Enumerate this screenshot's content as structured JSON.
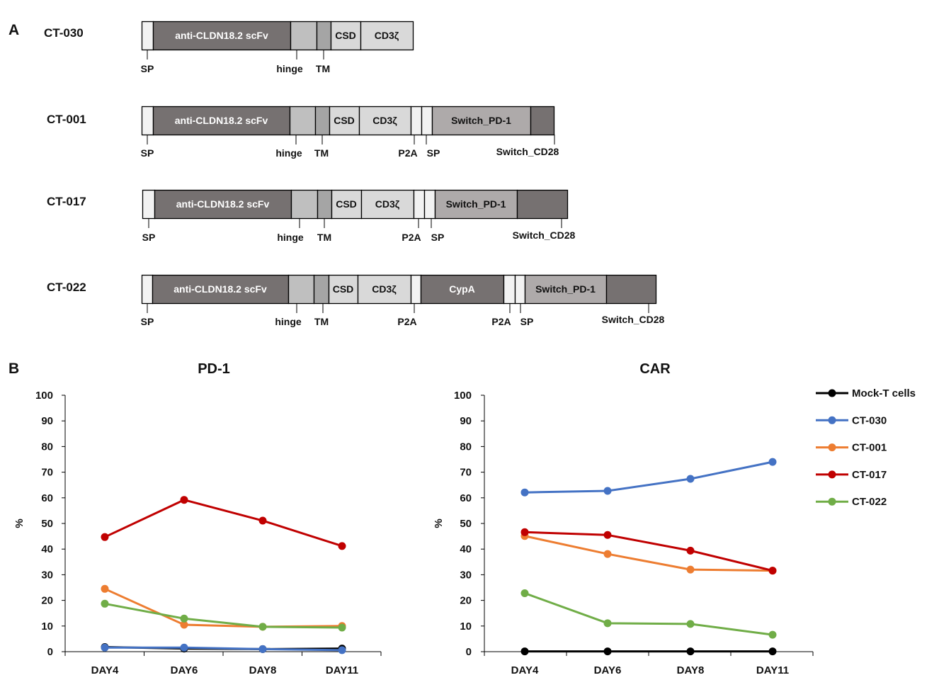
{
  "panels": {
    "a": "A",
    "b": "B"
  },
  "colors": {
    "sp": "#f2f2f2",
    "scfv": "#767171",
    "hinge": "#bfbfbf",
    "tm": "#a5a5a5",
    "csd": "#d9d9d9",
    "cd3z": "#d9d9d9",
    "p2a": "#f2f2f2",
    "switch_pd1": "#aeaaaa",
    "switch_cd28": "#767171",
    "cypa": "#767171",
    "mock": "#000000",
    "ct030": "#4472c4",
    "ct001": "#ed7d31",
    "ct017": "#c00000",
    "ct022": "#70ad47"
  },
  "constructs": [
    {
      "name": "CT-030",
      "segments": [
        {
          "type": "sp",
          "label": ""
        },
        {
          "type": "scfv",
          "label": "anti-CLDN18.2 scFv"
        },
        {
          "type": "hinge",
          "label": ""
        },
        {
          "type": "tm",
          "label": ""
        },
        {
          "type": "csd",
          "label": "CSD"
        },
        {
          "type": "cd3z",
          "label": "CD3ζ"
        }
      ],
      "annotations": [
        "SP",
        "hinge",
        "TM"
      ]
    },
    {
      "name": "CT-001",
      "segments": [
        {
          "type": "sp",
          "label": ""
        },
        {
          "type": "scfv",
          "label": "anti-CLDN18.2 scFv"
        },
        {
          "type": "hinge",
          "label": ""
        },
        {
          "type": "tm",
          "label": ""
        },
        {
          "type": "csd",
          "label": "CSD"
        },
        {
          "type": "cd3z",
          "label": "CD3ζ"
        },
        {
          "type": "p2a",
          "label": ""
        },
        {
          "type": "sp",
          "label": ""
        },
        {
          "type": "switch_pd1",
          "label": "Switch_PD-1"
        },
        {
          "type": "switch_cd28",
          "label": ""
        }
      ],
      "annotations": [
        "SP",
        "hinge",
        "TM",
        "P2A",
        "SP",
        "Switch_CD28"
      ]
    },
    {
      "name": "CT-017",
      "segments": [
        {
          "type": "sp",
          "label": ""
        },
        {
          "type": "scfv",
          "label": "anti-CLDN18.2 scFv"
        },
        {
          "type": "hinge",
          "label": ""
        },
        {
          "type": "tm",
          "label": ""
        },
        {
          "type": "csd",
          "label": "CSD"
        },
        {
          "type": "cd3z",
          "label": "CD3ζ"
        },
        {
          "type": "p2a",
          "label": ""
        },
        {
          "type": "sp",
          "label": ""
        },
        {
          "type": "switch_pd1",
          "label": "Switch_PD-1"
        },
        {
          "type": "switch_cd28",
          "label": ""
        }
      ],
      "annotations": [
        "SP",
        "hinge",
        "TM",
        "P2A",
        "SP",
        "Switch_CD28"
      ]
    },
    {
      "name": "CT-022",
      "segments": [
        {
          "type": "sp",
          "label": ""
        },
        {
          "type": "scfv",
          "label": "anti-CLDN18.2 scFv"
        },
        {
          "type": "hinge",
          "label": ""
        },
        {
          "type": "tm",
          "label": ""
        },
        {
          "type": "csd",
          "label": "CSD"
        },
        {
          "type": "cd3z",
          "label": "CD3ζ"
        },
        {
          "type": "p2a",
          "label": ""
        },
        {
          "type": "cypa",
          "label": "CypA"
        },
        {
          "type": "p2a",
          "label": ""
        },
        {
          "type": "sp",
          "label": ""
        },
        {
          "type": "switch_pd1",
          "label": "Switch_PD-1"
        },
        {
          "type": "switch_cd28",
          "label": ""
        }
      ],
      "annotations": [
        "SP",
        "hinge",
        "TM",
        "P2A",
        "P2A",
        "SP",
        "Switch_CD28"
      ]
    }
  ],
  "chart_data": [
    {
      "type": "line",
      "title": "PD-1",
      "xlabel": "",
      "ylabel": "%",
      "categories": [
        "DAY4",
        "DAY6",
        "DAY8",
        "DAY11"
      ],
      "ylim": [
        0,
        100
      ],
      "yticks": [
        "0",
        "10",
        "20",
        "30",
        "40",
        "50",
        "60",
        "70",
        "80",
        "90",
        "100"
      ],
      "series": [
        {
          "name": "Mock-T cells",
          "key": "mock",
          "values": [
            1.8,
            1.2,
            1.0,
            1.2
          ]
        },
        {
          "name": "CT-030",
          "key": "ct030",
          "values": [
            1.6,
            1.6,
            1.0,
            0.6
          ]
        },
        {
          "name": "CT-001",
          "key": "ct001",
          "values": [
            24.5,
            10.5,
            9.7,
            10.0
          ]
        },
        {
          "name": "CT-017",
          "key": "ct017",
          "values": [
            44.7,
            59.2,
            51.1,
            41.2
          ]
        },
        {
          "name": "CT-022",
          "key": "ct022",
          "values": [
            18.7,
            12.9,
            9.7,
            9.4
          ]
        }
      ]
    },
    {
      "type": "line",
      "title": "CAR",
      "xlabel": "",
      "ylabel": "%",
      "categories": [
        "DAY4",
        "DAY6",
        "DAY8",
        "DAY11"
      ],
      "ylim": [
        0,
        100
      ],
      "yticks": [
        "0",
        "10",
        "20",
        "30",
        "40",
        "50",
        "60",
        "70",
        "80",
        "90",
        "100"
      ],
      "series": [
        {
          "name": "Mock-T cells",
          "key": "mock",
          "values": [
            0.1,
            0.1,
            0.1,
            0.1
          ]
        },
        {
          "name": "CT-030",
          "key": "ct030",
          "values": [
            62.1,
            62.7,
            67.4,
            74.0
          ]
        },
        {
          "name": "CT-001",
          "key": "ct001",
          "values": [
            45.1,
            38.1,
            32.0,
            31.6
          ]
        },
        {
          "name": "CT-017",
          "key": "ct017",
          "values": [
            46.6,
            45.5,
            39.4,
            31.6
          ]
        },
        {
          "name": "CT-022",
          "key": "ct022",
          "values": [
            22.8,
            11.1,
            10.8,
            6.6
          ]
        }
      ]
    }
  ],
  "legend": [
    {
      "label": "Mock-T cells",
      "key": "mock"
    },
    {
      "label": "CT-030",
      "key": "ct030"
    },
    {
      "label": "CT-001",
      "key": "ct001"
    },
    {
      "label": "CT-017",
      "key": "ct017"
    },
    {
      "label": "CT-022",
      "key": "ct022"
    }
  ]
}
